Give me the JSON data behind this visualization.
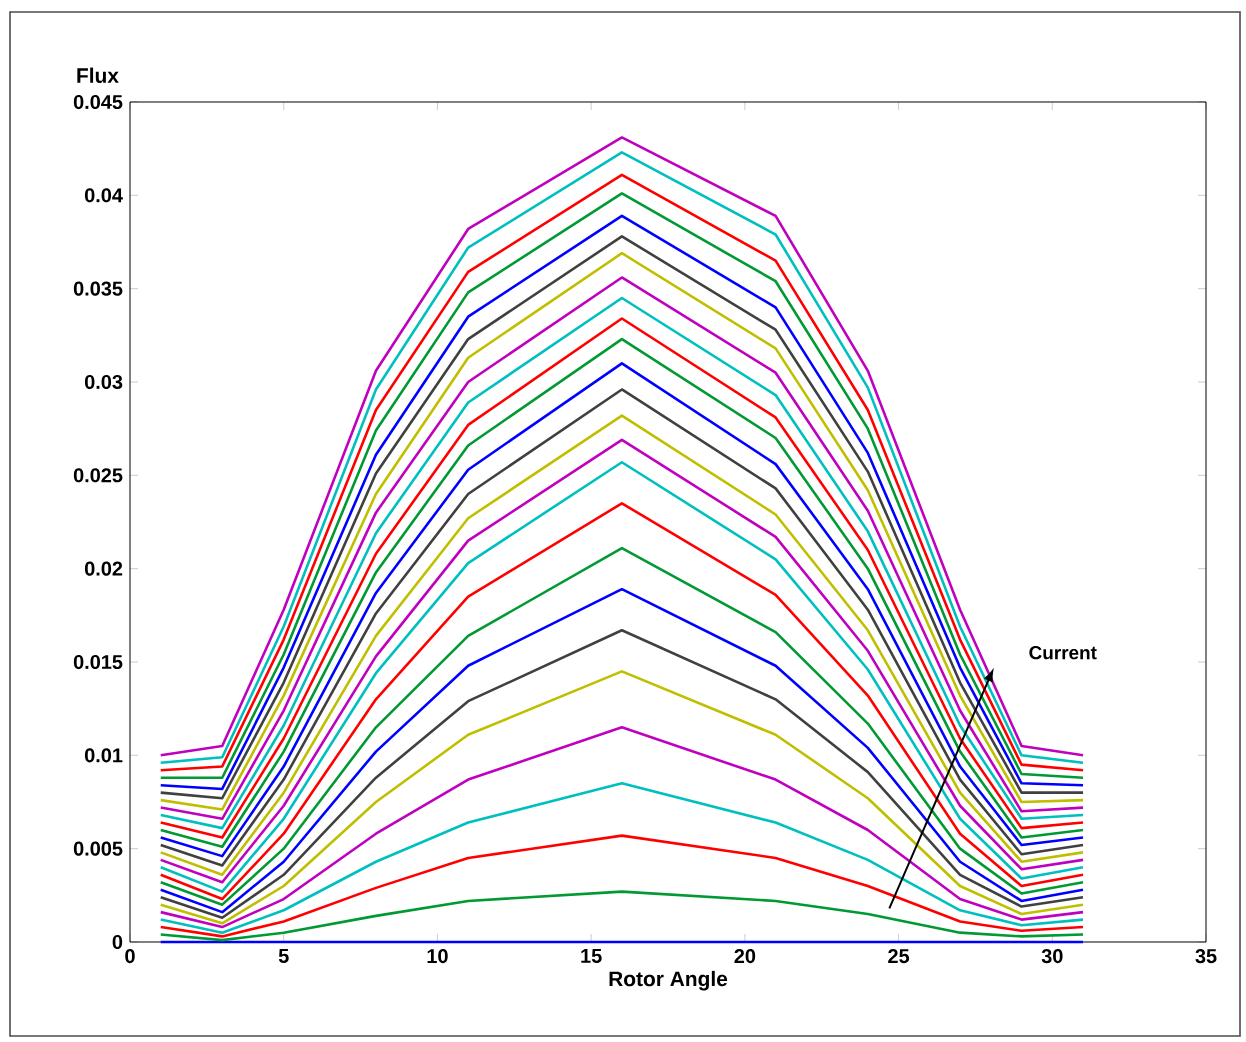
{
  "chart_data": {
    "type": "line",
    "xlabel": "Rotor Angle",
    "ylabel": "Flux",
    "annotations": [
      "Current"
    ],
    "xlim": [
      0,
      35
    ],
    "xticks": [
      0,
      5,
      10,
      15,
      20,
      25,
      30,
      35
    ],
    "ylim": [
      0,
      0.045
    ],
    "yticks": [
      0,
      0.005,
      0.01,
      0.015,
      0.02,
      0.025,
      0.03,
      0.035,
      0.04,
      0.045
    ],
    "x": [
      1,
      3,
      5,
      8,
      11,
      16,
      21,
      24,
      27,
      29,
      31
    ],
    "series": [
      {
        "color": "#0000ff",
        "values": [
          0,
          0,
          0,
          0,
          0,
          0,
          0,
          0,
          0,
          0,
          0
        ]
      },
      {
        "color": "#009933",
        "values": [
          0.0004,
          0.0001,
          0.0005,
          0.0014,
          0.0022,
          0.0027,
          0.0022,
          0.0015,
          0.0005,
          0.0003,
          0.0004
        ]
      },
      {
        "color": "#ff0000",
        "values": [
          0.0008,
          0.0003,
          0.0011,
          0.0029,
          0.0045,
          0.0057,
          0.0045,
          0.003,
          0.0011,
          0.0006,
          0.0008
        ]
      },
      {
        "color": "#00bfbf",
        "values": [
          0.0012,
          0.0005,
          0.0017,
          0.0043,
          0.0064,
          0.0085,
          0.0064,
          0.0044,
          0.0017,
          0.0009,
          0.0012
        ]
      },
      {
        "color": "#bf00bf",
        "values": [
          0.0016,
          0.0008,
          0.0023,
          0.0058,
          0.0087,
          0.0115,
          0.0087,
          0.006,
          0.0023,
          0.0012,
          0.0016
        ]
      },
      {
        "color": "#bfbf00",
        "values": [
          0.002,
          0.001,
          0.003,
          0.0075,
          0.0111,
          0.0145,
          0.0111,
          0.0077,
          0.003,
          0.0015,
          0.002
        ]
      },
      {
        "color": "#404040",
        "values": [
          0.0024,
          0.0013,
          0.0036,
          0.0088,
          0.0129,
          0.0167,
          0.013,
          0.0091,
          0.0036,
          0.0019,
          0.0024
        ]
      },
      {
        "color": "#0000ff",
        "values": [
          0.0028,
          0.0016,
          0.0043,
          0.0102,
          0.0148,
          0.0189,
          0.0148,
          0.0104,
          0.0043,
          0.0022,
          0.0028
        ]
      },
      {
        "color": "#009933",
        "values": [
          0.0032,
          0.002,
          0.005,
          0.0115,
          0.0164,
          0.0211,
          0.0166,
          0.0117,
          0.005,
          0.0026,
          0.0032
        ]
      },
      {
        "color": "#ff0000",
        "values": [
          0.0036,
          0.0023,
          0.0058,
          0.013,
          0.0185,
          0.0235,
          0.0186,
          0.0132,
          0.0058,
          0.003,
          0.0036
        ]
      },
      {
        "color": "#00bfbf",
        "values": [
          0.004,
          0.0027,
          0.0066,
          0.0144,
          0.0203,
          0.0257,
          0.0205,
          0.0146,
          0.0066,
          0.0034,
          0.004
        ]
      },
      {
        "color": "#bf00bf",
        "values": [
          0.0044,
          0.0032,
          0.0073,
          0.0153,
          0.0215,
          0.0269,
          0.0217,
          0.0156,
          0.0073,
          0.0039,
          0.0044
        ]
      },
      {
        "color": "#bfbf00",
        "values": [
          0.0048,
          0.0036,
          0.008,
          0.0164,
          0.0227,
          0.0282,
          0.0229,
          0.0167,
          0.008,
          0.0043,
          0.0048
        ]
      },
      {
        "color": "#404040",
        "values": [
          0.0052,
          0.0041,
          0.0087,
          0.0176,
          0.024,
          0.0296,
          0.0243,
          0.0178,
          0.0087,
          0.0047,
          0.0052
        ]
      },
      {
        "color": "#0000ff",
        "values": [
          0.0056,
          0.0046,
          0.0094,
          0.0187,
          0.0253,
          0.031,
          0.0256,
          0.0189,
          0.0094,
          0.0052,
          0.0056
        ]
      },
      {
        "color": "#009933",
        "values": [
          0.006,
          0.0051,
          0.0102,
          0.0198,
          0.0266,
          0.0323,
          0.027,
          0.02,
          0.0102,
          0.0056,
          0.006
        ]
      },
      {
        "color": "#ff0000",
        "values": [
          0.0064,
          0.0056,
          0.0109,
          0.0208,
          0.0277,
          0.0334,
          0.0281,
          0.021,
          0.0109,
          0.0061,
          0.0064
        ]
      },
      {
        "color": "#00bfbf",
        "values": [
          0.0068,
          0.0061,
          0.0116,
          0.0219,
          0.0289,
          0.0345,
          0.0293,
          0.022,
          0.0116,
          0.0066,
          0.0068
        ]
      },
      {
        "color": "#bf00bf",
        "values": [
          0.0072,
          0.0066,
          0.0124,
          0.023,
          0.03,
          0.0356,
          0.0305,
          0.0231,
          0.0124,
          0.007,
          0.0072
        ]
      },
      {
        "color": "#bfbf00",
        "values": [
          0.0076,
          0.0071,
          0.0132,
          0.024,
          0.0313,
          0.0369,
          0.0318,
          0.0242,
          0.0132,
          0.0075,
          0.0076
        ]
      },
      {
        "color": "#404040",
        "values": [
          0.008,
          0.0077,
          0.0139,
          0.0251,
          0.0323,
          0.0378,
          0.0328,
          0.0252,
          0.0139,
          0.008,
          0.008
        ]
      },
      {
        "color": "#0000ff",
        "values": [
          0.0084,
          0.0082,
          0.0147,
          0.0261,
          0.0335,
          0.0389,
          0.034,
          0.0262,
          0.0147,
          0.0085,
          0.0084
        ]
      },
      {
        "color": "#009933",
        "values": [
          0.0088,
          0.0088,
          0.0154,
          0.0274,
          0.0348,
          0.0401,
          0.0354,
          0.0275,
          0.0154,
          0.009,
          0.0088
        ]
      },
      {
        "color": "#ff0000",
        "values": [
          0.0092,
          0.0094,
          0.0162,
          0.0285,
          0.0359,
          0.0411,
          0.0365,
          0.0285,
          0.0162,
          0.0095,
          0.0092
        ]
      },
      {
        "color": "#00bfbf",
        "values": [
          0.0096,
          0.0099,
          0.0169,
          0.0296,
          0.0372,
          0.0423,
          0.0379,
          0.0297,
          0.0169,
          0.01,
          0.0096
        ]
      },
      {
        "color": "#bf00bf",
        "values": [
          0.01,
          0.0105,
          0.0178,
          0.0306,
          0.0382,
          0.0431,
          0.0389,
          0.0306,
          0.0178,
          0.0105,
          0.01
        ]
      }
    ]
  }
}
